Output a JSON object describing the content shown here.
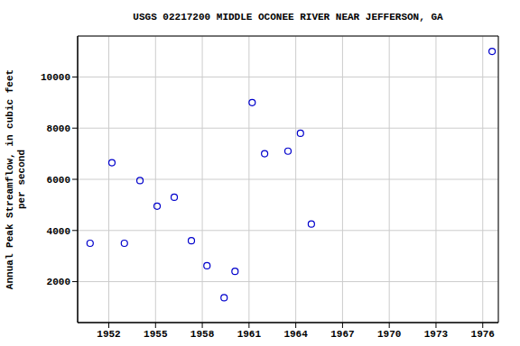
{
  "chart_data": {
    "type": "scatter",
    "title": "USGS 02217200 MIDDLE OCONEE RIVER NEAR JEFFERSON, GA",
    "y_label": [
      "Annual Peak Streamflow, in cubic feet",
      "per second"
    ],
    "x": [
      1950.8,
      1952.2,
      1953.0,
      1954.0,
      1955.1,
      1956.2,
      1957.3,
      1958.3,
      1959.4,
      1960.1,
      1961.2,
      1962.0,
      1963.5,
      1964.3,
      1965.0,
      1976.6
    ],
    "values": [
      3500,
      6650,
      3500,
      5950,
      4950,
      5300,
      3600,
      2620,
      1370,
      2400,
      9000,
      7000,
      7100,
      7800,
      4250,
      11000
    ],
    "color": "#0000cc",
    "marker": "circle_open",
    "xlim": [
      1950,
      1977
    ],
    "xticks": [
      1952,
      1955,
      1958,
      1961,
      1964,
      1967,
      1970,
      1973,
      1976
    ],
    "ylim": [
      400,
      11600
    ],
    "yticks": [
      2000,
      4000,
      6000,
      8000,
      10000
    ],
    "grid": true
  }
}
